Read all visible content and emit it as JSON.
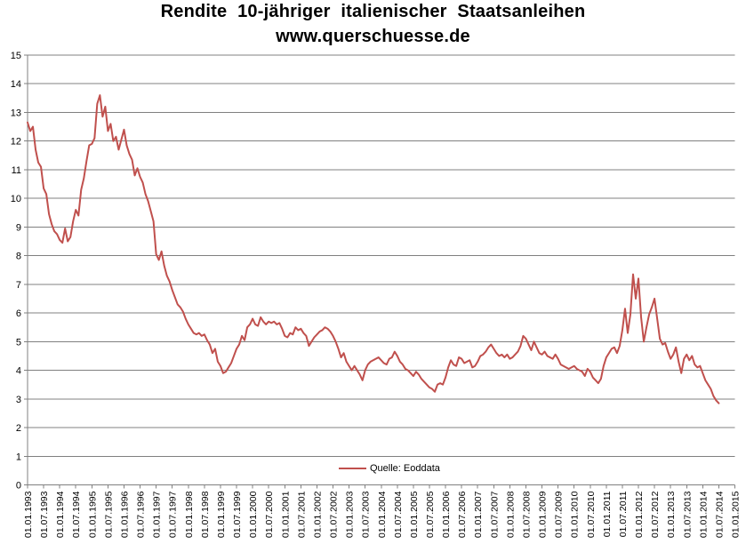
{
  "chart_data": {
    "type": "line",
    "title": "Rendite 10-jähriger italienischer Staatsanleihen",
    "subtitle": "www.querschuesse.de",
    "legend_position": "inside-bottom-center",
    "grid": "horizontal",
    "plot_background": "#ffffff",
    "gridline_color": "#808080",
    "axis_color": "#808080",
    "text_color": "#000000",
    "ylim": [
      0,
      15
    ],
    "ytick_step": 1,
    "ytick_labels": [
      "0",
      "1",
      "2",
      "3",
      "4",
      "5",
      "6",
      "7",
      "8",
      "9",
      "10",
      "11",
      "12",
      "13",
      "14",
      "15"
    ],
    "xtick_labels": [
      "01.01.1993",
      "01.07.1993",
      "01.01.1994",
      "01.07.1994",
      "01.01.1995",
      "01.07.1995",
      "01.01.1996",
      "01.07.1996",
      "01.01.1997",
      "01.07.1997",
      "01.01.1998",
      "01.07.1998",
      "01.01.1999",
      "01.07.1999",
      "01.01.2000",
      "01.07.2000",
      "01.01.2001",
      "01.07.2001",
      "01.01.2002",
      "01.07.2002",
      "01.01.2003",
      "01.07.2003",
      "01.01.2004",
      "01.07.2004",
      "01.01.2005",
      "01.07.2005",
      "01.01.2006",
      "01.07.2006",
      "01.01.2007",
      "01.07.2007",
      "01.01.2008",
      "01.07.2008",
      "01.01.2009",
      "01.07.2009",
      "01.01.2010",
      "01.07.2010",
      "01.01.2011",
      "01.07.2011",
      "01.01.2012",
      "01.07.2012",
      "01.01.2013",
      "01.07.2013",
      "01.01.2014",
      "01.07.2014",
      "01.01.2015"
    ],
    "x_axis_span_months": 264,
    "series": [
      {
        "name": "Quelle: Eoddata",
        "color": "#c0504d",
        "sampling": "monthly",
        "start": "01.1993",
        "end": "07.2014",
        "values": [
          12.65,
          12.35,
          12.5,
          11.7,
          11.25,
          11.1,
          10.35,
          10.15,
          9.45,
          9.1,
          8.85,
          8.75,
          8.55,
          8.45,
          8.95,
          8.5,
          8.65,
          9.2,
          9.6,
          9.4,
          10.3,
          10.7,
          11.3,
          11.85,
          11.9,
          12.1,
          13.3,
          13.6,
          12.85,
          13.2,
          12.35,
          12.6,
          12.0,
          12.15,
          11.7,
          12.05,
          12.4,
          11.85,
          11.55,
          11.35,
          10.8,
          11.05,
          10.75,
          10.55,
          10.15,
          9.9,
          9.55,
          9.2,
          8.05,
          7.85,
          8.15,
          7.65,
          7.3,
          7.1,
          6.8,
          6.55,
          6.3,
          6.2,
          6.05,
          5.8,
          5.6,
          5.45,
          5.3,
          5.25,
          5.3,
          5.2,
          5.25,
          5.05,
          4.9,
          4.6,
          4.75,
          4.3,
          4.15,
          3.9,
          3.95,
          4.1,
          4.25,
          4.5,
          4.75,
          4.9,
          5.2,
          5.05,
          5.5,
          5.6,
          5.8,
          5.6,
          5.55,
          5.85,
          5.7,
          5.6,
          5.7,
          5.65,
          5.7,
          5.6,
          5.65,
          5.45,
          5.2,
          5.15,
          5.3,
          5.25,
          5.5,
          5.4,
          5.45,
          5.3,
          5.2,
          4.85,
          5.0,
          5.15,
          5.25,
          5.35,
          5.4,
          5.5,
          5.45,
          5.35,
          5.2,
          5.0,
          4.75,
          4.45,
          4.6,
          4.3,
          4.15,
          4.0,
          4.15,
          4.0,
          3.85,
          3.65,
          4.0,
          4.2,
          4.3,
          4.35,
          4.4,
          4.45,
          4.35,
          4.25,
          4.2,
          4.4,
          4.45,
          4.65,
          4.5,
          4.3,
          4.2,
          4.05,
          4.0,
          3.9,
          3.8,
          3.95,
          3.85,
          3.7,
          3.6,
          3.5,
          3.4,
          3.35,
          3.25,
          3.5,
          3.55,
          3.5,
          3.75,
          4.1,
          4.35,
          4.2,
          4.15,
          4.45,
          4.4,
          4.25,
          4.3,
          4.35,
          4.1,
          4.15,
          4.3,
          4.5,
          4.55,
          4.65,
          4.8,
          4.9,
          4.75,
          4.6,
          4.5,
          4.55,
          4.45,
          4.55,
          4.4,
          4.45,
          4.55,
          4.65,
          4.85,
          5.2,
          5.1,
          4.9,
          4.7,
          5.0,
          4.8,
          4.6,
          4.55,
          4.65,
          4.5,
          4.45,
          4.4,
          4.55,
          4.4,
          4.2,
          4.15,
          4.1,
          4.05,
          4.1,
          4.15,
          4.05,
          4.0,
          3.95,
          3.8,
          4.05,
          3.95,
          3.75,
          3.65,
          3.55,
          3.7,
          4.15,
          4.45,
          4.6,
          4.75,
          4.8,
          4.6,
          4.85,
          5.4,
          6.15,
          5.3,
          5.95,
          7.35,
          6.5,
          7.2,
          5.85,
          5.0,
          5.5,
          5.95,
          6.2,
          6.5,
          5.8,
          5.1,
          4.9,
          4.95,
          4.65,
          4.4,
          4.55,
          4.8,
          4.3,
          3.9,
          4.4,
          4.55,
          4.35,
          4.5,
          4.2,
          4.1,
          4.15,
          3.9,
          3.65,
          3.5,
          3.35,
          3.1,
          2.95,
          2.85
        ]
      }
    ]
  }
}
